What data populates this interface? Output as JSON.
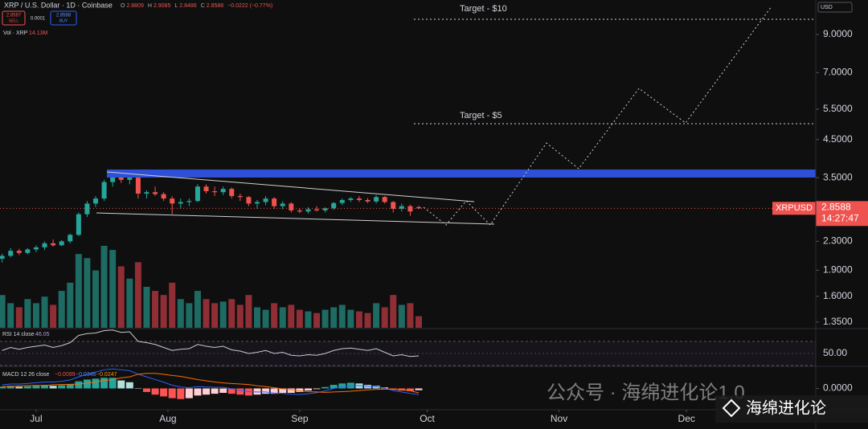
{
  "header": {
    "symbol": "XRP / U.S. Dollar · 1D · Coinbase",
    "ohlc": [
      "O",
      "2.8809",
      "H",
      "2.9085",
      "L",
      "2.8486",
      "C",
      "2.8588",
      "−0.0222 (−0.77%)"
    ],
    "sell": {
      "price": "2.8587",
      "label": "SELL"
    },
    "spread": "0.0001",
    "buy": {
      "price": "2.8588",
      "label": "BUY"
    },
    "currency": "USD"
  },
  "chart_data": {
    "type": "candlestick",
    "log_scale": true,
    "grid": false,
    "xlim": [
      -0.25,
      95.7
    ],
    "xticks": [
      {
        "value": 4,
        "label": "Jul"
      },
      {
        "value": 19.5,
        "label": "Aug"
      },
      {
        "value": 35,
        "label": "Sep"
      },
      {
        "value": 50,
        "label": "Oct"
      },
      {
        "value": 65.5,
        "label": "Nov"
      },
      {
        "value": 80.5,
        "label": "Dec"
      }
    ],
    "ylim": [
      1.3,
      11.3
    ],
    "yticks": [
      {
        "value": 9,
        "label": "9.0000"
      },
      {
        "value": 7,
        "label": "7.0000"
      },
      {
        "value": 5.5,
        "label": "5.5000"
      },
      {
        "value": 4.5,
        "label": "4.5000"
      },
      {
        "value": 3.5,
        "label": "3.5000"
      },
      {
        "value": 2.3,
        "label": "2.3000"
      },
      {
        "value": 1.9,
        "label": "1.9000"
      },
      {
        "value": 1.6,
        "label": "1.6000"
      },
      {
        "value": 1.35,
        "label": "1.3500"
      }
    ],
    "up_color": "#26a69a",
    "down_color": "#ef5350",
    "open": [
      2.05,
      2.09,
      2.16,
      2.13,
      2.18,
      2.21,
      2.27,
      2.24,
      2.3,
      2.4,
      2.75,
      2.95,
      3.05,
      3.4,
      3.52,
      3.45,
      3.5,
      3.15,
      3.18,
      3.14,
      3.05,
      2.95,
      2.98,
      3.0,
      3.3,
      3.2,
      3.18,
      3.25,
      3.1,
      3.08,
      2.95,
      2.98,
      3.05,
      2.9,
      2.95,
      2.82,
      2.8,
      2.84,
      2.82,
      2.86,
      2.96,
      3.02,
      3.05,
      3.02,
      2.99,
      3.08,
      2.98,
      2.85,
      2.9,
      2.8809
    ],
    "high": [
      2.12,
      2.2,
      2.19,
      2.2,
      2.24,
      2.3,
      2.33,
      2.32,
      2.42,
      2.78,
      3.0,
      3.1,
      3.45,
      3.66,
      3.6,
      3.58,
      3.52,
      3.22,
      3.3,
      3.18,
      3.1,
      3.05,
      3.05,
      3.35,
      3.35,
      3.3,
      3.3,
      3.28,
      3.15,
      3.1,
      3.02,
      3.1,
      3.08,
      3.0,
      2.98,
      2.86,
      2.88,
      2.9,
      2.88,
      2.98,
      3.05,
      3.08,
      3.1,
      3.06,
      3.12,
      3.1,
      3.0,
      2.95,
      2.93,
      2.9085
    ],
    "low": [
      2.0,
      2.07,
      2.1,
      2.11,
      2.14,
      2.17,
      2.22,
      2.23,
      2.27,
      2.38,
      2.7,
      2.88,
      3.0,
      3.3,
      3.38,
      3.35,
      3.05,
      3.05,
      3.1,
      3.0,
      2.75,
      2.85,
      2.9,
      2.98,
      3.15,
      3.1,
      3.12,
      3.05,
      3.0,
      2.9,
      2.85,
      2.92,
      2.85,
      2.84,
      2.78,
      2.77,
      2.76,
      2.8,
      2.78,
      2.83,
      2.92,
      2.98,
      2.98,
      2.96,
      2.95,
      2.95,
      2.78,
      2.8,
      2.72,
      2.8486
    ],
    "close": [
      2.09,
      2.16,
      2.13,
      2.18,
      2.21,
      2.27,
      2.24,
      2.3,
      2.4,
      2.75,
      2.95,
      3.05,
      3.4,
      3.52,
      3.45,
      3.5,
      3.15,
      3.18,
      3.14,
      3.05,
      2.95,
      2.98,
      3.0,
      3.3,
      3.2,
      3.18,
      3.25,
      3.1,
      3.08,
      2.95,
      2.98,
      3.05,
      2.9,
      2.95,
      2.82,
      2.8,
      2.84,
      2.82,
      2.86,
      2.96,
      3.02,
      3.05,
      3.02,
      2.99,
      3.08,
      2.98,
      2.85,
      2.9,
      2.8,
      2.8588
    ],
    "ticker": "XRPUSD",
    "countdown": "14:27:47",
    "annotations": [
      "Target - $10",
      "Target - $5"
    ],
    "volume": {
      "name": "Vol · XRP",
      "legend_value": "14.13M",
      "ylim": [
        0,
        400
      ],
      "up_color": "#1d6b63",
      "down_color": "#8f2f35",
      "values": [
        40,
        30,
        25,
        35,
        30,
        38,
        28,
        45,
        55,
        90,
        85,
        70,
        100,
        95,
        75,
        60,
        80,
        50,
        45,
        40,
        55,
        35,
        30,
        45,
        35,
        30,
        32,
        35,
        28,
        40,
        25,
        22,
        30,
        25,
        28,
        22,
        20,
        18,
        22,
        25,
        28,
        22,
        20,
        18,
        30,
        25,
        40,
        28,
        30,
        14.13
      ]
    },
    "rsi": {
      "name": "RSI 14 close",
      "color": "#c8cad0",
      "ylim": [
        30,
        90
      ],
      "band": [
        30,
        70
      ],
      "yticks": [
        {
          "value": 50,
          "label": "50.00"
        }
      ],
      "values": [
        55,
        60,
        57,
        60,
        62,
        64,
        60,
        63,
        68,
        80,
        83,
        84,
        88,
        89,
        85,
        86,
        70,
        68,
        65,
        60,
        55,
        57,
        58,
        65,
        62,
        60,
        62,
        56,
        54,
        50,
        52,
        55,
        50,
        52,
        47,
        46,
        48,
        47,
        50,
        55,
        58,
        59,
        57,
        55,
        58,
        52,
        46,
        48,
        45,
        46.05
      ]
    },
    "macd": {
      "name": "MACD 12 26 close",
      "legend_labels": [
        "−0.0099",
        "−0.0346",
        "−0.0247"
      ],
      "ylim": [
        -0.12,
        0.12
      ],
      "yticks": [
        {
          "value": 0,
          "label": "0.0000"
        }
      ],
      "macd_color": "#2962ff",
      "signal_color": "#ff6d00",
      "histogram": [
        0.01,
        0.015,
        0.01,
        0.012,
        0.015,
        0.02,
        0.015,
        0.018,
        0.025,
        0.04,
        0.05,
        0.055,
        0.06,
        0.06,
        0.045,
        0.035,
        0.0,
        -0.02,
        -0.035,
        -0.045,
        -0.055,
        -0.06,
        -0.055,
        -0.04,
        -0.035,
        -0.03,
        -0.025,
        -0.03,
        -0.035,
        -0.04,
        -0.035,
        -0.03,
        -0.03,
        -0.025,
        -0.025,
        -0.02,
        -0.012,
        -0.004,
        0.008,
        0.02,
        0.028,
        0.032,
        0.028,
        0.02,
        0.015,
        0.006,
        -0.008,
        -0.012,
        -0.015,
        -0.0099
      ],
      "macd": [
        0.02,
        0.025,
        0.025,
        0.028,
        0.032,
        0.036,
        0.036,
        0.04,
        0.048,
        0.065,
        0.08,
        0.092,
        0.105,
        0.11,
        0.105,
        0.1,
        0.08,
        0.065,
        0.05,
        0.035,
        0.018,
        0.008,
        0.004,
        0.01,
        0.008,
        0.006,
        0.006,
        -0.002,
        -0.01,
        -0.018,
        -0.02,
        -0.02,
        -0.026,
        -0.028,
        -0.032,
        -0.034,
        -0.03,
        -0.024,
        -0.014,
        0.0,
        0.01,
        0.016,
        0.016,
        0.012,
        0.01,
        0.002,
        -0.012,
        -0.02,
        -0.028,
        -0.0346
      ],
      "signal": [
        0.01,
        0.01,
        0.015,
        0.016,
        0.017,
        0.016,
        0.021,
        0.022,
        0.023,
        0.025,
        0.03,
        0.037,
        0.045,
        0.05,
        0.06,
        0.065,
        0.08,
        0.085,
        0.085,
        0.08,
        0.073,
        0.068,
        0.059,
        0.05,
        0.043,
        0.036,
        0.031,
        0.028,
        0.025,
        0.022,
        0.015,
        0.01,
        0.004,
        -0.003,
        -0.007,
        -0.014,
        -0.018,
        -0.02,
        -0.022,
        -0.02,
        -0.018,
        -0.016,
        -0.012,
        -0.008,
        -0.005,
        -0.004,
        -0.004,
        -0.008,
        -0.013,
        -0.0247
      ]
    }
  },
  "watermark": {
    "account": "公众号 · 海绵进化论1.0",
    "badge": "海绵进化论"
  }
}
